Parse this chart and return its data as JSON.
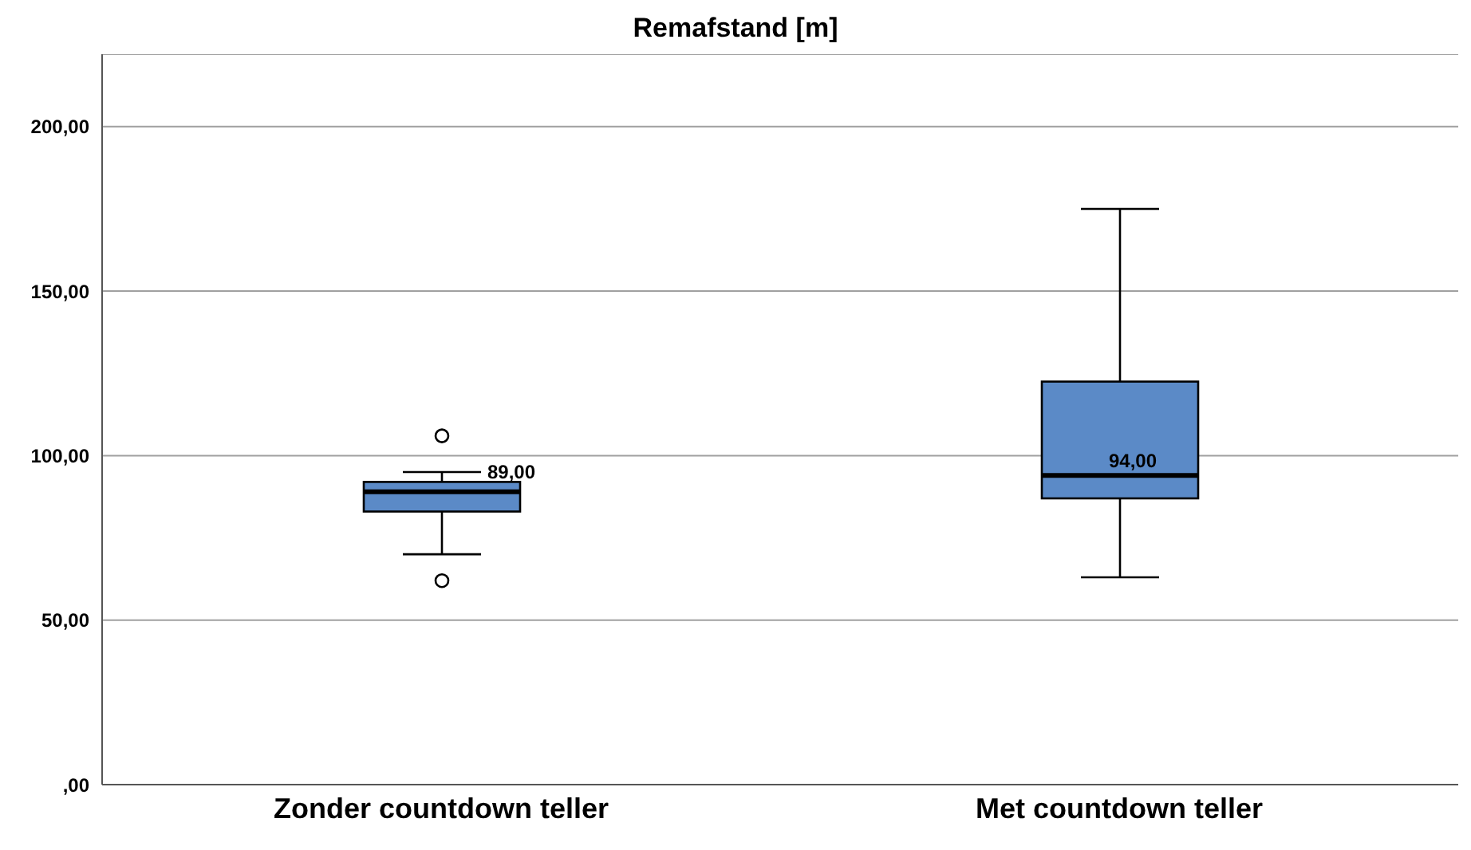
{
  "chart_data": {
    "type": "box",
    "title": "Remafstand [m]",
    "categories": [
      "Zonder countdown teller",
      "Met countdown teller"
    ],
    "boxes": [
      {
        "low": 70,
        "q1": 83,
        "median": 89,
        "q3": 92,
        "high": 95,
        "outliers": [
          106,
          62
        ]
      },
      {
        "low": 63,
        "q1": 87,
        "median": 94,
        "q3": 122.5,
        "high": 175
      }
    ],
    "value_labels": [
      "89,00",
      "94,00"
    ],
    "color": "#5b8ac7",
    "ylim": [
      0,
      222
    ],
    "yticks": [
      {
        "value": 0,
        "label": ",00"
      },
      {
        "value": 50,
        "label": "50,00"
      },
      {
        "value": 100,
        "label": "100,00"
      },
      {
        "value": 150,
        "label": "150,00"
      },
      {
        "value": 200,
        "label": "200,00"
      }
    ],
    "grid": "y"
  }
}
